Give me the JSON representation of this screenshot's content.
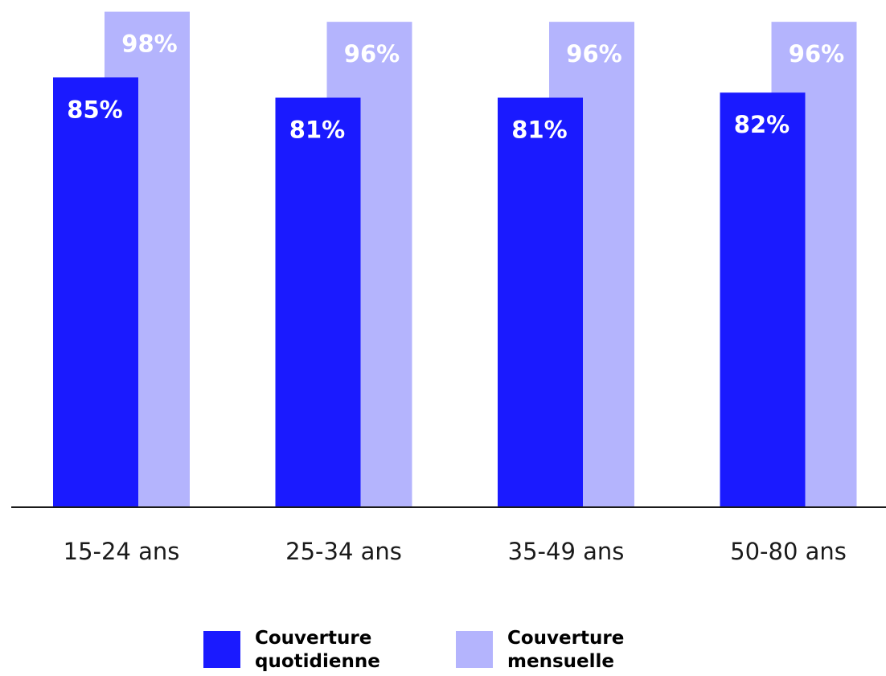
{
  "chart_data": {
    "type": "bar",
    "categories": [
      "15-24 ans",
      "25-34 ans",
      "35-49 ans",
      "50-80 ans"
    ],
    "series": [
      {
        "name": "Couverture quotidienne",
        "color": "#1a1aff",
        "values": [
          85,
          81,
          81,
          82
        ],
        "labels": [
          "85%",
          "81%",
          "81%",
          "82%"
        ]
      },
      {
        "name": "Couverture mensuelle",
        "color": "#b4b4fd",
        "values": [
          98,
          96,
          96,
          96
        ],
        "labels": [
          "98%",
          "96%",
          "96%",
          "96%"
        ]
      }
    ],
    "ylim": [
      0,
      100
    ],
    "grid": false,
    "legend_position": "bottom",
    "overlap": true
  },
  "legend": {
    "items": [
      {
        "line1": "Couverture",
        "line2": "quotidienne",
        "color": "#1a1aff"
      },
      {
        "line1": "Couverture",
        "line2": "mensuelle",
        "color": "#b4b4fd"
      }
    ]
  }
}
